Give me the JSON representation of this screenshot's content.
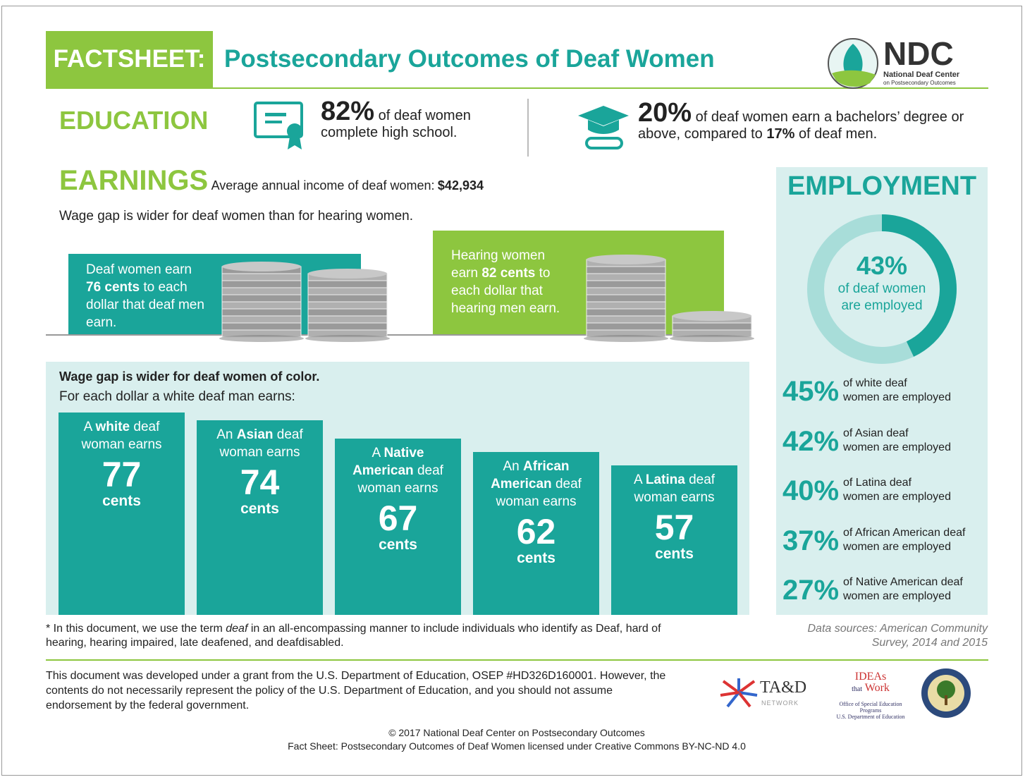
{
  "header": {
    "tag": "FACTSHEET:",
    "title": "Postsecondary Outcomes of Deaf Women",
    "logo": {
      "name": "NDC",
      "line1": "National Deaf Center",
      "line2": "on Postsecondary Outcomes"
    }
  },
  "education": {
    "heading": "EDUCATION",
    "stat1": {
      "value": "82%",
      "text": "of deaf women complete high school."
    },
    "stat2": {
      "value": "20%",
      "text": "of deaf women earn a bachelors’ degree or above, compared to",
      "value2": "17%",
      "text2": "of deaf men."
    }
  },
  "earnings": {
    "heading": "EARNINGS",
    "income_label": "Average annual income of deaf women:",
    "income": "$42,934",
    "gap_note": "Wage gap is wider for deaf women than for hearing women.",
    "deaf_box": {
      "pre": "Deaf women earn",
      "bold": "76 cents",
      "post": "to each dollar that deaf men earn."
    },
    "hearing_box": {
      "pre": "Hearing women earn",
      "bold": "82 cents",
      "post": "to each dollar that hearing men earn."
    }
  },
  "color_gap": {
    "title": "Wage gap is wider for deaf women of color.",
    "subtitle": "For each dollar a white deaf man earns:",
    "bars": [
      {
        "pre": "A",
        "group": "white",
        "post": "deaf woman earns",
        "value": 77,
        "unit": "cents"
      },
      {
        "pre": "An",
        "group": "Asian",
        "post": "deaf woman earns",
        "value": 74,
        "unit": "cents"
      },
      {
        "pre": "A",
        "group": "Native American",
        "post": "deaf woman earns",
        "value": 67,
        "unit": "cents"
      },
      {
        "pre": "An",
        "group": "African American",
        "post": "deaf woman earns",
        "value": 62,
        "unit": "cents"
      },
      {
        "pre": "A",
        "group": "Latina",
        "post": "deaf woman earns",
        "value": 57,
        "unit": "cents"
      }
    ]
  },
  "employment": {
    "heading": "EMPLOYMENT",
    "overall": {
      "value": 43,
      "label": "43%"
    },
    "overall_line1": "of deaf women",
    "overall_line2": "are employed",
    "groups": [
      {
        "value": "45%",
        "line1": "of white deaf",
        "line2": "women are employed"
      },
      {
        "value": "42%",
        "line1": "of Asian deaf",
        "line2": "women are employed"
      },
      {
        "value": "40%",
        "line1": "of Latina deaf",
        "line2": "women are employed"
      },
      {
        "value": "37%",
        "line1": "of African American deaf",
        "line2": "women are employed"
      },
      {
        "value": "27%",
        "line1": "of Native American deaf",
        "line2": "women are employed"
      }
    ]
  },
  "footnote": {
    "pre": "* In this document, we use the term",
    "italic": "deaf",
    "post": "in an all-encompassing manner to include individuals who identify as Deaf, hard of hearing, hearing impaired, late deafened, and deafdisabled."
  },
  "sources": "Data sources: American Community Survey, 2014 and 2015",
  "disclaimer": "This document was developed under a grant from the U.S. Department of Education, OSEP #HD326D160001. However, the contents do not necessarily represent the policy of the U.S. Department of Education, and you should not assume endorsement by the federal government.",
  "logos": {
    "tad": "TA&D",
    "tad_sub": "NETWORK",
    "ideas1": "IDEAs",
    "ideas2": "that",
    "ideas3": "Work",
    "osep1": "Office of Special Education Programs",
    "osep2": "U.S. Department of Education"
  },
  "copyright": "© 2017 National Deaf Center on Postsecondary Outcomes",
  "license": "Fact Sheet: Postsecondary Outcomes of Deaf Women licensed under Creative Commons BY-NC-ND 4.0"
}
